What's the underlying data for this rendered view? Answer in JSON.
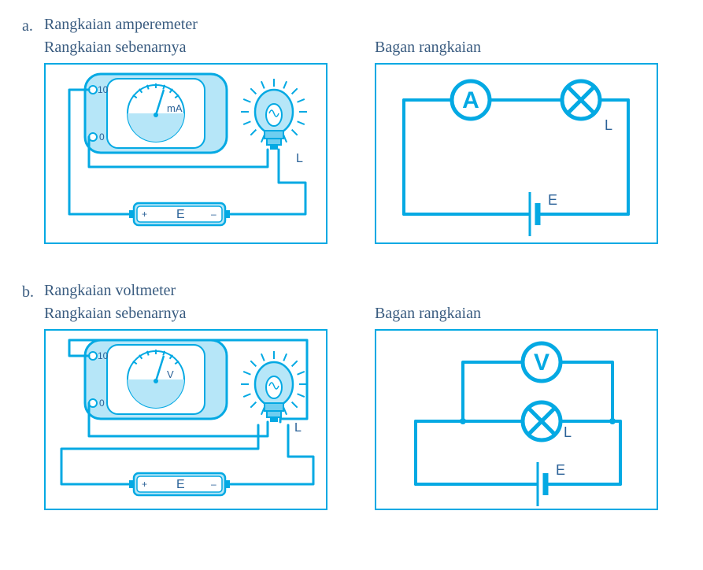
{
  "colors": {
    "stroke": "#04a9e3",
    "fill": "#b6e6f8",
    "dark_fill": "#6fcef0",
    "text_dark": "#2b6298",
    "text_body": "#3a5c80",
    "white": "#ffffff",
    "black": "#000000",
    "panel_border": "#04a9e3"
  },
  "typography": {
    "body_size": 20,
    "meter_small": 10,
    "symbol_size": 30
  },
  "section_a": {
    "letter": "a.",
    "title": "Rangkaian amperemeter",
    "actual_label": "Rangkaian sebenarnya",
    "diagram_label": "Bagan rangkaian",
    "meter_unit": "mA",
    "scale_hi": "10",
    "scale_lo": "0",
    "battery_label": "E",
    "lamp_label": "L",
    "ammeter_symbol": "A"
  },
  "section_b": {
    "letter": "b.",
    "title": "Rangkaian voltmeter",
    "actual_label": "Rangkaian sebenarnya",
    "diagram_label": "Bagan rangkaian",
    "meter_unit": "V",
    "scale_hi": "10",
    "scale_lo": "0",
    "battery_label": "E",
    "lamp_label": "L",
    "voltmeter_symbol": "V"
  },
  "diagram_style": {
    "wire_width": 4,
    "thin_wire_width": 3,
    "symbol_circle_r": 24,
    "symbol_stroke": 5,
    "battery_long": 28,
    "battery_short": 14,
    "battery_gap": 10
  }
}
